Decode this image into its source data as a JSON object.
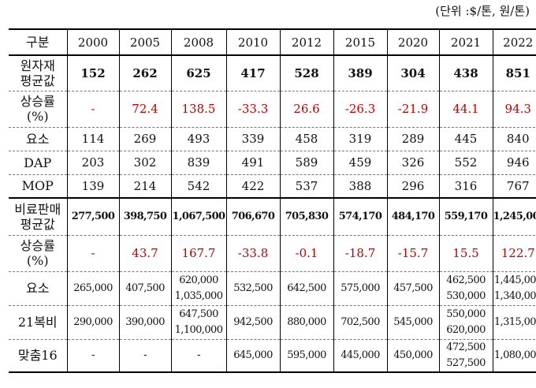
{
  "unit_label": "(단위 :$/톤, 원/톤)",
  "table": {
    "header": [
      "구분",
      "2000",
      "2005",
      "2008",
      "2010",
      "2012",
      "2015",
      "2020",
      "2021",
      "2022"
    ],
    "rows": [
      {
        "label": [
          "원자재",
          "평균값"
        ],
        "style": "bold",
        "cells": [
          "152",
          "262",
          "625",
          "417",
          "528",
          "389",
          "304",
          "438",
          "851"
        ]
      },
      {
        "label": [
          "상승률",
          "(%)"
        ],
        "style": "red",
        "cells": [
          "-",
          "72.4",
          "138.5",
          "-33.3",
          "26.6",
          "-26.3",
          "-21.9",
          "44.1",
          "94.3"
        ]
      },
      {
        "label": [
          "요소"
        ],
        "style": "",
        "cells": [
          "114",
          "269",
          "493",
          "339",
          "458",
          "319",
          "289",
          "445",
          "840"
        ]
      },
      {
        "label": [
          "DAP"
        ],
        "style": "",
        "cells": [
          "203",
          "302",
          "839",
          "491",
          "589",
          "459",
          "326",
          "552",
          "946"
        ]
      },
      {
        "label": [
          "MOP"
        ],
        "style": "",
        "cells": [
          "139",
          "214",
          "542",
          "422",
          "537",
          "388",
          "296",
          "316",
          "767"
        ]
      },
      {
        "label": [
          "비료판매",
          "평균값"
        ],
        "style": "sm bold",
        "cells": [
          "277,500",
          "398,750",
          "1,067,500",
          "706,670",
          "705,830",
          "574,170",
          "484,170",
          "559,170",
          "1,245,000"
        ]
      },
      {
        "label": [
          "상승률",
          "(%)"
        ],
        "style": "red",
        "cells": [
          "-",
          "43.7",
          "167.7",
          "-33.8",
          "-0.1",
          "-18.7",
          "-15.7",
          "15.5",
          "122.7"
        ]
      },
      {
        "label": [
          "요소"
        ],
        "style": "sm",
        "cells": [
          [
            "265,000"
          ],
          [
            "407,500"
          ],
          [
            "620,000",
            "1,035,000"
          ],
          [
            "532,500"
          ],
          [
            "642,500"
          ],
          [
            "575,000"
          ],
          [
            "457,500"
          ],
          [
            "462,500",
            "530,000"
          ],
          [
            "1,445,000",
            "1,340,000"
          ]
        ]
      },
      {
        "label": [
          "21복비"
        ],
        "style": "sm",
        "cells": [
          [
            "290,000"
          ],
          [
            "390,000"
          ],
          [
            "647,500",
            "1,100,000"
          ],
          [
            "942,500"
          ],
          [
            "880,000"
          ],
          [
            "702,500"
          ],
          [
            "545,000"
          ],
          [
            "550,000",
            "620,000"
          ],
          [
            "1,315,000"
          ]
        ]
      },
      {
        "label": [
          "맞춤16"
        ],
        "style": "sm",
        "cells": [
          [
            "-"
          ],
          [
            "-"
          ],
          [
            "-"
          ],
          [
            "645,000"
          ],
          [
            "595,000"
          ],
          [
            "445,000"
          ],
          [
            "450,000"
          ],
          [
            "472,500",
            "527,500"
          ],
          [
            "1,080,000"
          ]
        ]
      }
    ]
  }
}
